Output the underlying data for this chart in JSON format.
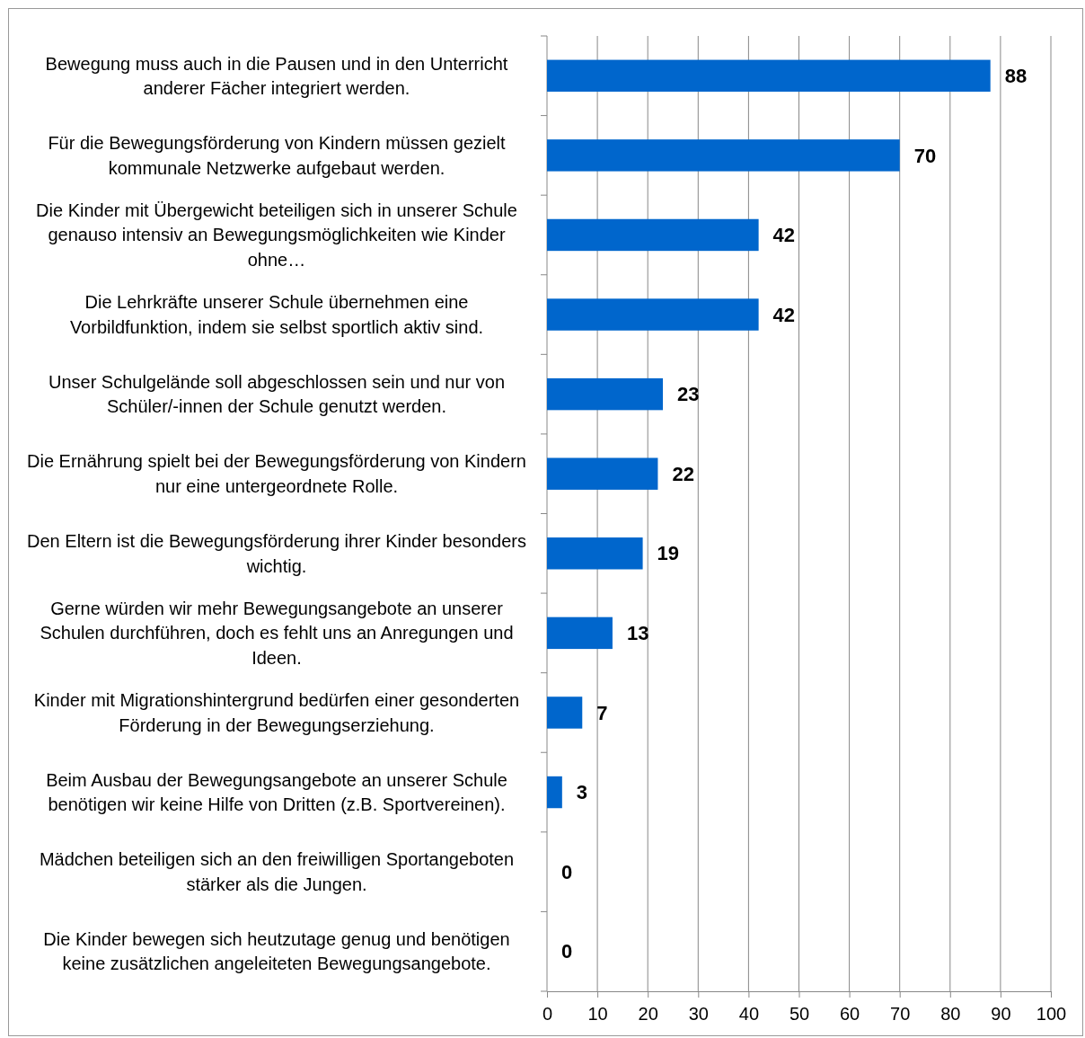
{
  "chart_data": {
    "type": "bar",
    "orientation": "horizontal",
    "categories": [
      "Bewegung muss auch in die Pausen und in den Unterricht anderer Fächer integriert werden.",
      "Für die Bewegungsförderung von Kindern müssen gezielt kommunale Netzwerke aufgebaut werden.",
      "Die Kinder mit Übergewicht beteiligen sich in unserer Schule genauso intensiv an Bewegungsmöglichkeiten wie Kinder ohne…",
      "Die Lehrkräfte unserer Schule übernehmen eine Vorbildfunktion, indem sie selbst sportlich aktiv sind.",
      "Unser Schulgelände soll abgeschlossen sein und nur von Schüler/-innen der Schule genutzt werden.",
      "Die Ernährung spielt bei der Bewegungsförderung von Kindern nur eine untergeordnete Rolle.",
      "Den Eltern ist die Bewegungsförderung ihrer Kinder besonders wichtig.",
      "Gerne würden wir mehr Bewegungsangebote an unserer Schulen durchführen, doch es fehlt uns an Anregungen und Ideen.",
      "Kinder mit Migrationshintergrund bedürfen einer gesonderten Förderung in der Bewegungserziehung.",
      "Beim Ausbau der Bewegungsangebote an unserer Schule benötigen wir keine Hilfe von Dritten (z.B. Sportvereinen).",
      "Mädchen beteiligen sich an den freiwilligen Sportangeboten stärker als die Jungen.",
      "Die Kinder bewegen sich heutzutage genug und benötigen keine zusätzlichen angeleiteten Bewegungsangebote."
    ],
    "values": [
      88,
      70,
      42,
      42,
      23,
      22,
      19,
      13,
      7,
      3,
      0,
      0
    ],
    "color": "#0066cc",
    "xlim": [
      0,
      100
    ],
    "xticks": [
      0,
      10,
      20,
      30,
      40,
      50,
      60,
      70,
      80,
      90,
      100
    ],
    "grid": "x",
    "data_labels": true
  }
}
